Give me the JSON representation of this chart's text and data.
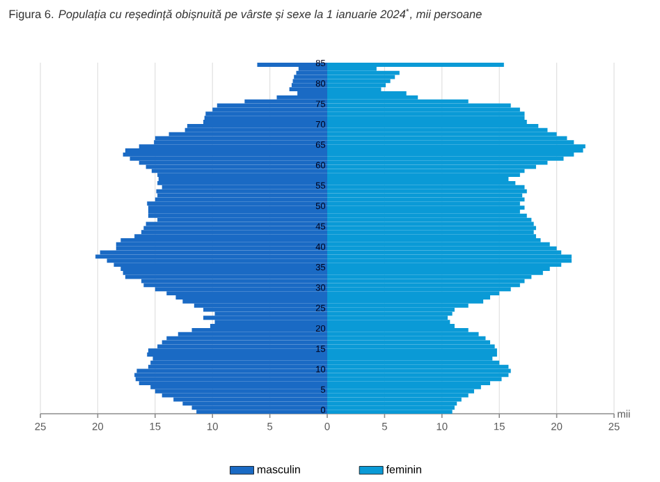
{
  "chart_data": {
    "type": "bar",
    "orientation": "horizontal",
    "title": "Figura 6. *Populația cu reședință obișnuită pe vârste și sexe la 1 ianuarie 2024*$^{*}$*, mii persoane*",
    "xlabel": "mii",
    "categories": [
      "85",
      null,
      null,
      null,
      null,
      "80",
      null,
      null,
      null,
      null,
      "75",
      null,
      null,
      null,
      null,
      "70",
      null,
      null,
      null,
      null,
      "65",
      null,
      null,
      null,
      null,
      "60",
      null,
      null,
      null,
      null,
      "55",
      null,
      null,
      null,
      null,
      "50",
      null,
      null,
      null,
      null,
      "45",
      null,
      null,
      null,
      null,
      "40",
      null,
      null,
      null,
      null,
      "35",
      null,
      null,
      null,
      null,
      "30",
      null,
      null,
      null,
      null,
      "25",
      null,
      null,
      null,
      null,
      "20",
      null,
      null,
      null,
      null,
      "15",
      null,
      null,
      null,
      null,
      "10",
      null,
      null,
      null,
      null,
      "5",
      null,
      null,
      null,
      null,
      "0"
    ],
    "series": [
      {
        "name": "masculin",
        "color": "#1a6ac4",
        "values": [
          -6.1,
          -2.5,
          -2.7,
          -2.9,
          -3.0,
          -3.1,
          -3.3,
          -2.6,
          -4.4,
          -7.2,
          -9.6,
          -10.0,
          -10.6,
          -10.7,
          -10.8,
          -12.2,
          -12.4,
          -13.8,
          -15.0,
          -15.1,
          -16.4,
          -17.6,
          -17.8,
          -17.2,
          -16.4,
          -15.8,
          -15.3,
          -14.8,
          -14.7,
          -14.8,
          -14.4,
          -14.9,
          -14.8,
          -15.0,
          -15.7,
          -15.6,
          -15.6,
          -15.6,
          -14.8,
          -15.8,
          -16.0,
          -16.2,
          -16.8,
          -18.0,
          -18.4,
          -18.4,
          -19.8,
          -20.2,
          -19.2,
          -18.6,
          -18.0,
          -17.8,
          -17.6,
          -16.2,
          -16.0,
          -15.0,
          -14.0,
          -13.2,
          -12.6,
          -11.6,
          -10.8,
          -9.8,
          -10.8,
          -9.8,
          -10.2,
          -11.8,
          -13.0,
          -14.0,
          -14.4,
          -14.8,
          -15.6,
          -15.7,
          -15.2,
          -15.4,
          -15.6,
          -16.6,
          -16.8,
          -16.7,
          -16.4,
          -15.4,
          -15.0,
          -14.4,
          -13.4,
          -12.6,
          -11.8,
          -11.4
        ]
      },
      {
        "name": "feminin",
        "color": "#0a9ad6",
        "values": [
          15.4,
          4.3,
          6.3,
          5.9,
          5.5,
          5.1,
          4.7,
          6.9,
          7.9,
          12.3,
          16.0,
          16.8,
          17.2,
          17.2,
          17.4,
          18.4,
          19.2,
          20.0,
          20.9,
          21.5,
          22.5,
          22.3,
          21.5,
          20.6,
          19.2,
          18.2,
          17.2,
          16.8,
          15.8,
          16.4,
          17.2,
          17.4,
          17.0,
          17.2,
          16.8,
          17.2,
          16.8,
          17.4,
          17.8,
          18.0,
          18.2,
          18.0,
          18.2,
          18.6,
          19.4,
          20.0,
          20.4,
          21.3,
          21.3,
          20.4,
          19.4,
          18.8,
          17.8,
          17.2,
          16.8,
          16.0,
          15.0,
          14.2,
          13.6,
          12.3,
          11.1,
          10.9,
          10.5,
          10.7,
          11.1,
          12.3,
          13.2,
          13.8,
          14.2,
          14.6,
          14.8,
          14.8,
          14.4,
          15.0,
          15.8,
          16.0,
          15.8,
          15.2,
          14.2,
          13.4,
          12.8,
          12.3,
          11.7,
          11.3,
          11.1,
          10.9
        ]
      }
    ],
    "xlim": [
      -25,
      25
    ],
    "xticks": [
      {
        "value": -25,
        "label": "25"
      },
      {
        "value": -20,
        "label": "20"
      },
      {
        "value": -15,
        "label": "15"
      },
      {
        "value": -10,
        "label": "10"
      },
      {
        "value": -5,
        "label": "5"
      },
      0,
      5,
      10,
      15,
      20,
      25
    ],
    "stacked": true,
    "grid": "x",
    "legend": "bottom"
  }
}
